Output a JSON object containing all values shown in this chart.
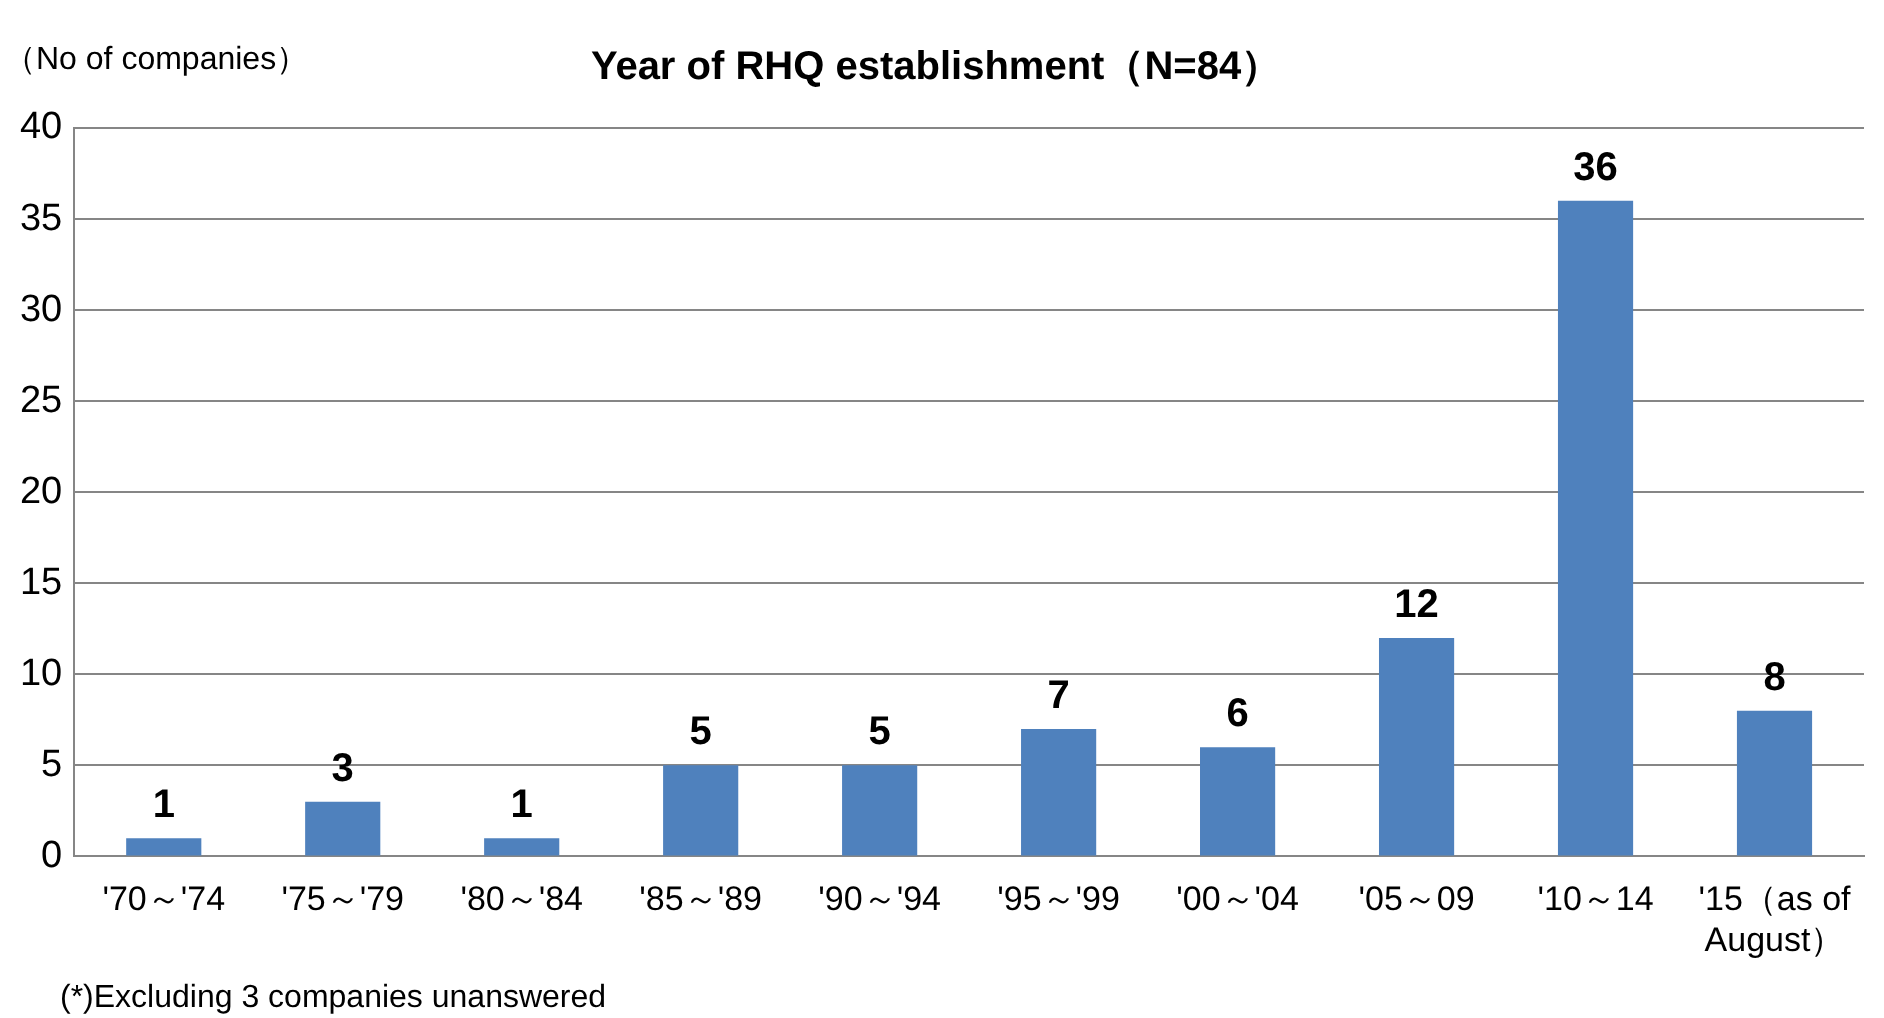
{
  "chart_data": {
    "type": "bar",
    "title": "Year of RHQ establishment（N=84）",
    "ylabel": "（No of companies）",
    "categories": [
      "'70～'74",
      "'75～'79",
      "'80～'84",
      "'85～'89",
      "'90～'94",
      "'95～'99",
      "'00～'04",
      "'05～09",
      "'10～14",
      "'15（as of August）"
    ],
    "values": [
      1,
      3,
      1,
      5,
      5,
      7,
      6,
      12,
      36,
      8
    ],
    "color": "#4f81bd",
    "ylim": [
      0,
      40
    ],
    "yticks": [
      0,
      5,
      10,
      15,
      20,
      25,
      30,
      35,
      40
    ],
    "grid": "y",
    "data_labels": true,
    "legend": false,
    "annotations": [
      "(*)Excluding 3 companies unanswered"
    ]
  }
}
